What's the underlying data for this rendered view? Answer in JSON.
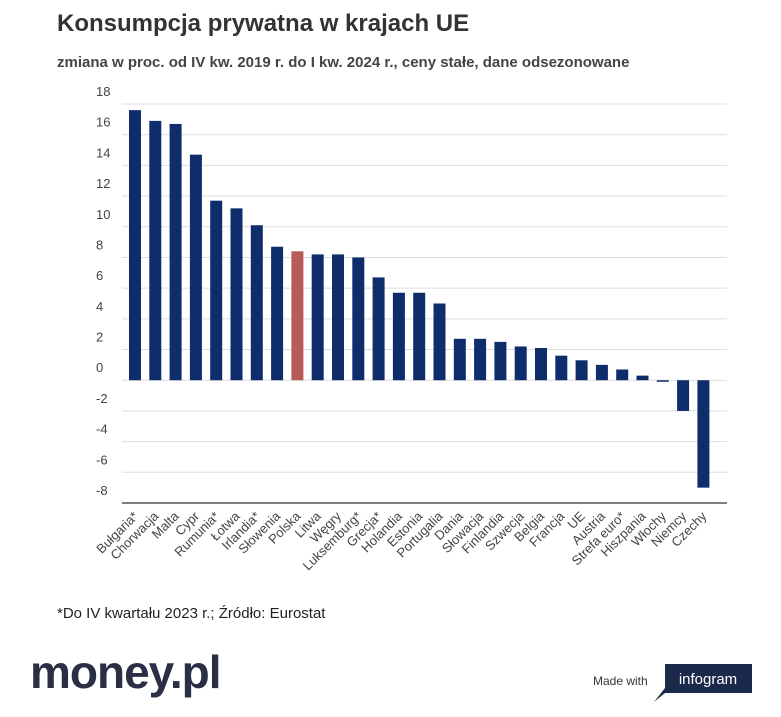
{
  "chart_data": {
    "type": "bar",
    "title": "Konsumpcja prywatna w krajach UE",
    "subtitle": "zmiana w proc. od IV kw. 2019 r. do I kw. 2024 r., ceny stałe, dane odsezonowane",
    "categories": [
      "Bułgaria*",
      "Chorwacja",
      "Malta",
      "Cypr",
      "Rumunia*",
      "Łotwa",
      "Irlandia*",
      "Słowenia",
      "Polska",
      "Litwa",
      "Węgry",
      "Luksemburg*",
      "Grecja*",
      "Holandia",
      "Estonia",
      "Portugalia",
      "Dania",
      "Słowacja",
      "Finlandia",
      "Szwecja",
      "Belgia",
      "Francja",
      "UE",
      "Austria",
      "Strefa euro*",
      "Hiszpania",
      "Włochy",
      "Niemcy",
      "Czechy"
    ],
    "values": [
      17.6,
      16.9,
      16.7,
      14.7,
      11.7,
      11.2,
      10.1,
      8.7,
      8.4,
      8.2,
      8.2,
      8.0,
      6.7,
      5.7,
      5.7,
      5.0,
      2.7,
      2.7,
      2.5,
      2.2,
      2.1,
      1.6,
      1.3,
      1.0,
      0.7,
      0.3,
      -0.1,
      -2.0,
      -7.0
    ],
    "colors": [
      "#0f2d6b",
      "#0f2d6b",
      "#0f2d6b",
      "#0f2d6b",
      "#0f2d6b",
      "#0f2d6b",
      "#0f2d6b",
      "#0f2d6b",
      "#b85a5a",
      "#0f2d6b",
      "#0f2d6b",
      "#0f2d6b",
      "#0f2d6b",
      "#0f2d6b",
      "#0f2d6b",
      "#0f2d6b",
      "#0f2d6b",
      "#0f2d6b",
      "#0f2d6b",
      "#0f2d6b",
      "#0f2d6b",
      "#0f2d6b",
      "#0f2d6b",
      "#0f2d6b",
      "#0f2d6b",
      "#0f2d6b",
      "#0f2d6b",
      "#0f2d6b",
      "#0f2d6b"
    ],
    "ylim": [
      -8,
      18
    ],
    "yticks": [
      18,
      16,
      14,
      12,
      10,
      8,
      6,
      4,
      2,
      0,
      -2,
      -4,
      -6,
      -8
    ],
    "grid": true,
    "note": "*Do IV kwartału 2023 r.; Źródło: Eurostat"
  },
  "branding": {
    "logo": "money.pl",
    "made_with": "Made with",
    "platform": "infogram"
  }
}
